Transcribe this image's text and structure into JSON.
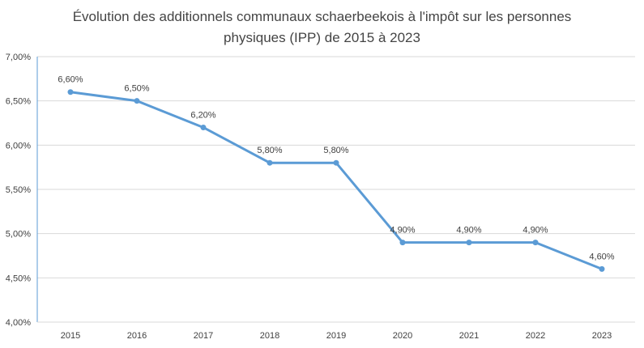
{
  "chart_data": {
    "type": "line",
    "title_line1": "Évolution des additionnels communaux schaerbeekois à l'impôt sur les personnes",
    "title_line2": "physiques (IPP) de 2015 à 2023",
    "categories": [
      "2015",
      "2016",
      "2017",
      "2018",
      "2019",
      "2020",
      "2021",
      "2022",
      "2023"
    ],
    "series": [
      {
        "values": [
          6.6,
          6.5,
          6.2,
          5.8,
          5.8,
          4.9,
          4.9,
          4.9,
          4.6
        ],
        "labels": [
          "6,60%",
          "6,50%",
          "6,20%",
          "5,80%",
          "5,80%",
          "4,90%",
          "4,90%",
          "4,90%",
          "4,60%"
        ],
        "color": "#5B9BD5"
      }
    ],
    "ylim": [
      4.0,
      7.0
    ],
    "yticks": [
      4.0,
      4.5,
      5.0,
      5.5,
      6.0,
      6.5,
      7.0
    ],
    "ytick_labels": [
      "4,00%",
      "4,50%",
      "5,00%",
      "5,50%",
      "6,00%",
      "6,50%",
      "7,00%"
    ],
    "grid": true,
    "gridline_color": "#d9d9d9",
    "axis_color": "#5B9BD5"
  }
}
